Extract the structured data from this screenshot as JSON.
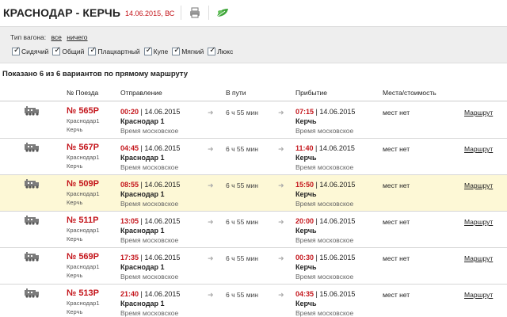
{
  "header": {
    "title": "КРАСНОДАР - КЕРЧЬ",
    "date": "14.06.2015, ВС",
    "icons": [
      "printer-icon",
      "leaf-icon"
    ],
    "accent_color": "#c4151b"
  },
  "filter": {
    "label": "Тип вагона:",
    "all": "все",
    "none": "ничего",
    "types": [
      "Сидячий",
      "Общий",
      "Плацкартный",
      "Купе",
      "Мягкий",
      "Люкс"
    ]
  },
  "summary": "Показано 6 из 6 вариантов по прямому маршруту",
  "columns": {
    "num": "№ Поезда",
    "dep": "Отправление",
    "dur": "В пути",
    "arr": "Прибытие",
    "seats": "Места/стоимость"
  },
  "rows": [
    {
      "num": "№ 565Р",
      "from": "Краснодар1",
      "to": "Керчь",
      "dep_time": "00:20",
      "dep_date": " | 14.06.2015",
      "dep_station": "Краснодар 1",
      "dep_tz": "Время московское",
      "dur": "6 ч 55 мин",
      "arr_time": "07:15",
      "arr_date": " | 14.06.2015",
      "arr_station": "Керчь",
      "arr_tz": "Время московское",
      "seats": "мест нет",
      "link": "Маршрут"
    },
    {
      "num": "№ 567Р",
      "from": "Краснодар1",
      "to": "Керчь",
      "dep_time": "04:45",
      "dep_date": " | 14.06.2015",
      "dep_station": "Краснодар 1",
      "dep_tz": "Время московское",
      "dur": "6 ч 55 мин",
      "arr_time": "11:40",
      "arr_date": " | 14.06.2015",
      "arr_station": "Керчь",
      "arr_tz": "Время московское",
      "seats": "мест нет",
      "link": "Маршрут"
    },
    {
      "num": "№ 509Р",
      "from": "Краснодар1",
      "to": "Керчь",
      "dep_time": "08:55",
      "dep_date": " | 14.06.2015",
      "dep_station": "Краснодар 1",
      "dep_tz": "Время московское",
      "dur": "6 ч 55 мин",
      "arr_time": "15:50",
      "arr_date": " | 14.06.2015",
      "arr_station": "Керчь",
      "arr_tz": "Время московское",
      "seats": "мест нет",
      "link": "Маршрут",
      "highlight": true
    },
    {
      "num": "№ 511Р",
      "from": "Краснодар1",
      "to": "Керчь",
      "dep_time": "13:05",
      "dep_date": " | 14.06.2015",
      "dep_station": "Краснодар 1",
      "dep_tz": "Время московское",
      "dur": "6 ч 55 мин",
      "arr_time": "20:00",
      "arr_date": " | 14.06.2015",
      "arr_station": "Керчь",
      "arr_tz": "Время московское",
      "seats": "мест нет",
      "link": "Маршрут"
    },
    {
      "num": "№ 569Р",
      "from": "Краснодар1",
      "to": "Керчь",
      "dep_time": "17:35",
      "dep_date": " | 14.06.2015",
      "dep_station": "Краснодар 1",
      "dep_tz": "Время московское",
      "dur": "6 ч 55 мин",
      "arr_time": "00:30",
      "arr_date": " | 15.06.2015",
      "arr_station": "Керчь",
      "arr_tz": "Время московское",
      "seats": "мест нет",
      "link": "Маршрут"
    },
    {
      "num": "№ 513Р",
      "from": "Краснодар1",
      "to": "Керчь",
      "dep_time": "21:40",
      "dep_date": " | 14.06.2015",
      "dep_station": "Краснодар 1",
      "dep_tz": "Время московское",
      "dur": "6 ч 55 мин",
      "arr_time": "04:35",
      "arr_date": " | 15.06.2015",
      "arr_station": "Керчь",
      "arr_tz": "Время московское",
      "seats": "мест нет",
      "link": "Маршрут"
    }
  ]
}
